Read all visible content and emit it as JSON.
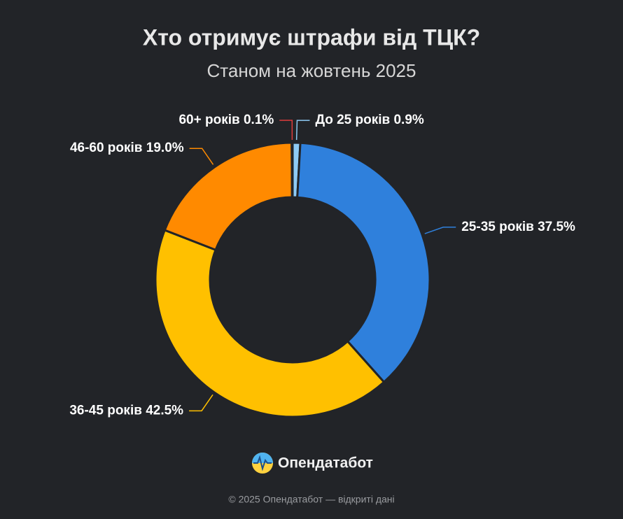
{
  "chart_data": {
    "type": "donut",
    "title": "Хто отримує штрафи від ТЦК?",
    "subtitle": "Станом на жовтень 2025",
    "categories": [
      "До 25 років",
      "25-35 років",
      "36-45 років",
      "46-60 років",
      "60+ років"
    ],
    "values": [
      0.9,
      37.5,
      42.5,
      19.0,
      0.1
    ],
    "value_labels": [
      "0.9%",
      "37.5%",
      "42.5%",
      "19.0%",
      "0.1%"
    ],
    "colors": [
      "#8ecbf5",
      "#2f80dc",
      "#ffc000",
      "#ff8a00",
      "#e03c3c"
    ]
  },
  "brand": "Опендатабот",
  "footer": "© 2025 Опендатабот — відкриті дані"
}
